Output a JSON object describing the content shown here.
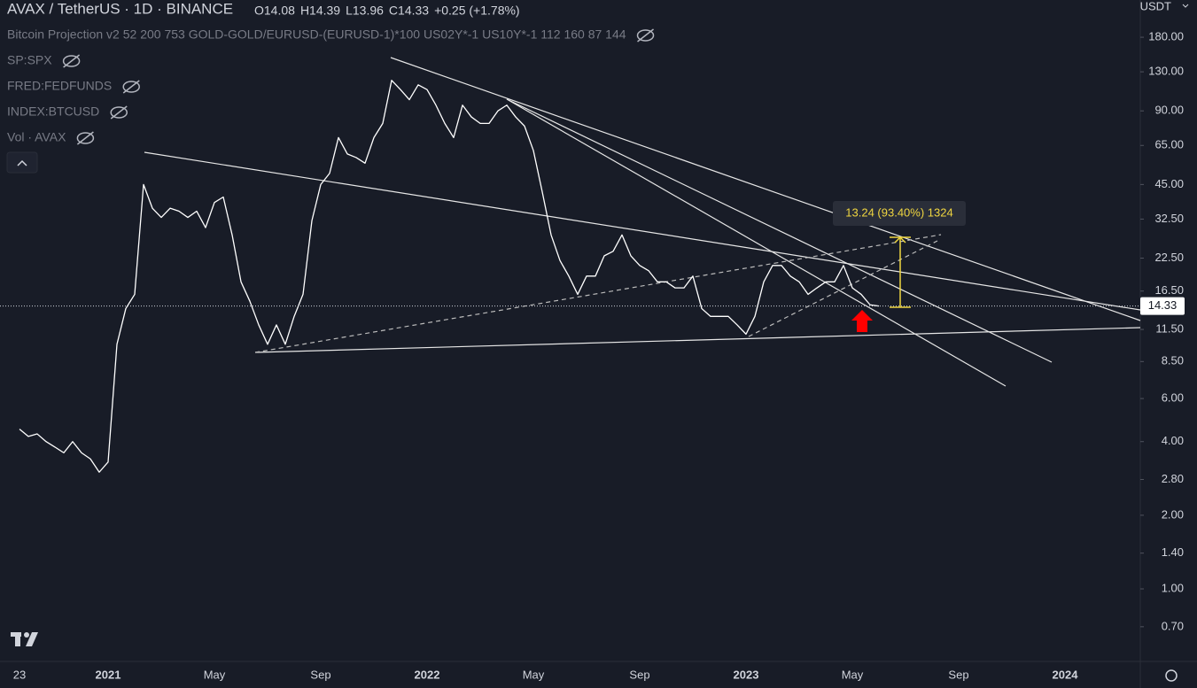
{
  "chart_data": {
    "type": "line",
    "symbol": "AVAX / TetherUS · 1D · BINANCE",
    "ohlc": [
      "O14.08",
      "H14.39",
      "L13.96",
      "C14.33",
      "+0.25 (+1.78%)"
    ],
    "indicators": [
      "Bitcoin Projection v2 52 200 753 GOLD-GOLD/EURUSD-(EURUSD-1)*100 US02Y*-1 US10Y*-1 112 160 87 144",
      "SP:SPX",
      "FRED:FEDFUNDS",
      "INDEX:BTCUSD",
      "Vol · AVAX"
    ],
    "currency": "USDT",
    "measure_label": "13.24 (93.40%) 1324",
    "last_price": 14.33,
    "log_scale": true,
    "color": "#ffffff",
    "ylim": [
      0.505,
      255.6
    ],
    "yticks": [
      {
        "value": 180,
        "label": "180.00"
      },
      {
        "value": 130,
        "label": "130.00"
      },
      {
        "value": 90,
        "label": "90.00"
      },
      {
        "value": 65,
        "label": "65.00"
      },
      {
        "value": 45,
        "label": "45.00"
      },
      {
        "value": 32.5,
        "label": "32.50"
      },
      {
        "value": 22.5,
        "label": "22.50"
      },
      {
        "value": 16.5,
        "label": "16.50"
      },
      {
        "value": 11.5,
        "label": "11.50"
      },
      {
        "value": 8.5,
        "label": "8.50"
      },
      {
        "value": 6,
        "label": "6.00"
      },
      {
        "value": 4,
        "label": "4.00"
      },
      {
        "value": 2.8,
        "label": "2.80"
      },
      {
        "value": 2,
        "label": "2.00"
      },
      {
        "value": 1.4,
        "label": "1.40"
      },
      {
        "value": 1,
        "label": "1.00"
      },
      {
        "value": 0.7,
        "label": "0.70"
      }
    ],
    "categories": [
      null,
      null,
      "23",
      null,
      null,
      null,
      null,
      null,
      null,
      null,
      null,
      null,
      "2021",
      null,
      null,
      null,
      null,
      null,
      null,
      null,
      null,
      null,
      null,
      null,
      "May",
      null,
      null,
      null,
      null,
      null,
      null,
      null,
      null,
      null,
      null,
      null,
      "Sep",
      null,
      null,
      null,
      null,
      null,
      null,
      null,
      null,
      null,
      null,
      null,
      "2022",
      null,
      null,
      null,
      null,
      null,
      null,
      null,
      null,
      null,
      null,
      null,
      "May",
      null,
      null,
      null,
      null,
      null,
      null,
      null,
      null,
      null,
      null,
      null,
      "Sep",
      null,
      null,
      null,
      null,
      null,
      null,
      null,
      null,
      null,
      null,
      null,
      "2023",
      null,
      null,
      null,
      null,
      null,
      null,
      null,
      null,
      null,
      null,
      null,
      "May",
      null,
      null,
      null,
      null,
      null,
      null,
      null,
      null,
      null,
      null,
      null,
      "Sep",
      null,
      null,
      null,
      null,
      null,
      null,
      null,
      null,
      null,
      null,
      null,
      "2024",
      null,
      null,
      null,
      null,
      null,
      null,
      null,
      null
    ],
    "values": [
      null,
      null,
      4.5,
      4.2,
      4.3,
      4.0,
      3.8,
      3.6,
      4.0,
      3.6,
      3.4,
      3.0,
      3.3,
      10,
      14,
      16,
      45,
      36,
      33,
      36,
      35,
      33,
      35,
      30,
      38,
      40,
      28,
      18,
      15,
      12,
      10,
      12,
      10,
      13,
      16,
      32,
      45,
      50,
      70,
      60,
      58,
      55,
      70,
      80,
      120,
      110,
      100,
      115,
      110,
      95,
      80,
      70,
      95,
      85,
      80,
      80,
      90,
      95,
      85,
      78,
      62,
      42,
      28,
      22,
      19,
      16,
      19,
      19,
      23,
      24,
      28,
      23,
      21,
      20,
      18,
      18,
      17,
      17,
      19,
      14,
      13,
      13,
      13,
      12,
      11,
      13,
      18,
      21,
      21,
      19,
      18,
      16,
      17,
      18,
      18,
      21,
      17,
      16,
      14.5,
      14.33,
      null,
      null,
      null,
      null,
      null,
      null,
      null,
      null,
      null,
      null,
      null,
      null,
      null,
      null,
      null,
      null,
      null,
      null,
      null,
      null,
      null,
      null,
      null,
      null,
      null,
      null,
      null,
      null,
      null
    ]
  }
}
